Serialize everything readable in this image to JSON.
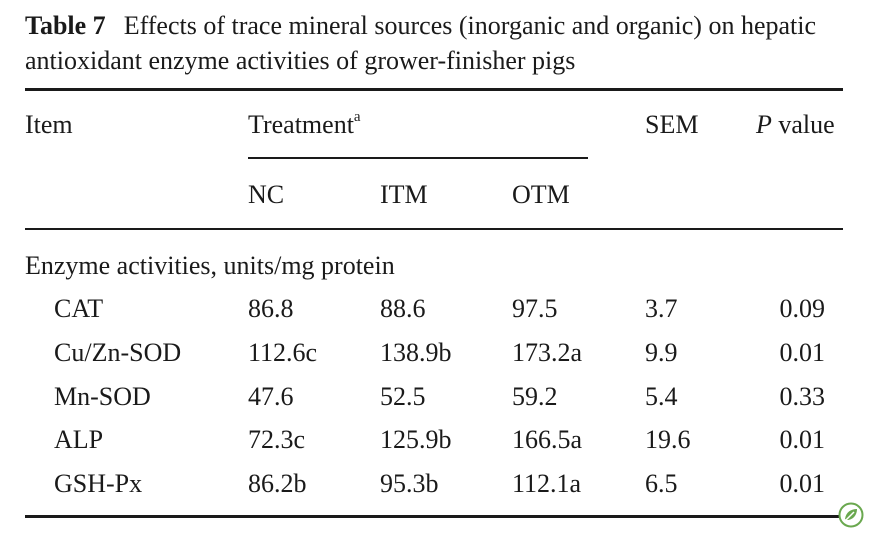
{
  "caption": {
    "label": "Table 7",
    "text": "Effects of trace mineral sources (inorganic and organic) on hepatic antioxidant enzyme activities of grower-finisher pigs"
  },
  "headers": {
    "item": "Item",
    "treatment": "Treatment",
    "treatment_sup": "a",
    "sem": "SEM",
    "p_italic": "P",
    "p_rest": " value",
    "nc": "NC",
    "itm": "ITM",
    "otm": "OTM"
  },
  "section": "Enzyme activities, units/mg protein",
  "rows": [
    {
      "item": "CAT",
      "nc": "86.8",
      "itm": "88.6",
      "otm": "97.5",
      "sem": "3.7",
      "p": "0.09"
    },
    {
      "item": "Cu/Zn-SOD",
      "nc": "112.6c",
      "itm": "138.9b",
      "otm": "173.2a",
      "sem": "9.9",
      "p": "0.01"
    },
    {
      "item": "Mn-SOD",
      "nc": "47.6",
      "itm": "52.5",
      "otm": "59.2",
      "sem": "5.4",
      "p": "0.33"
    },
    {
      "item": "ALP",
      "nc": "72.3c",
      "itm": "125.9b",
      "otm": "166.5a",
      "sem": "19.6",
      "p": "0.01"
    },
    {
      "item": "GSH-Px",
      "nc": "86.2b",
      "itm": "95.3b",
      "otm": "112.1a",
      "sem": "6.5",
      "p": "0.01"
    }
  ],
  "colors": {
    "text": "#1a1a1a",
    "badge": "#6aa84f"
  },
  "icons": {
    "corner_badge": "leaf-badge-icon"
  }
}
